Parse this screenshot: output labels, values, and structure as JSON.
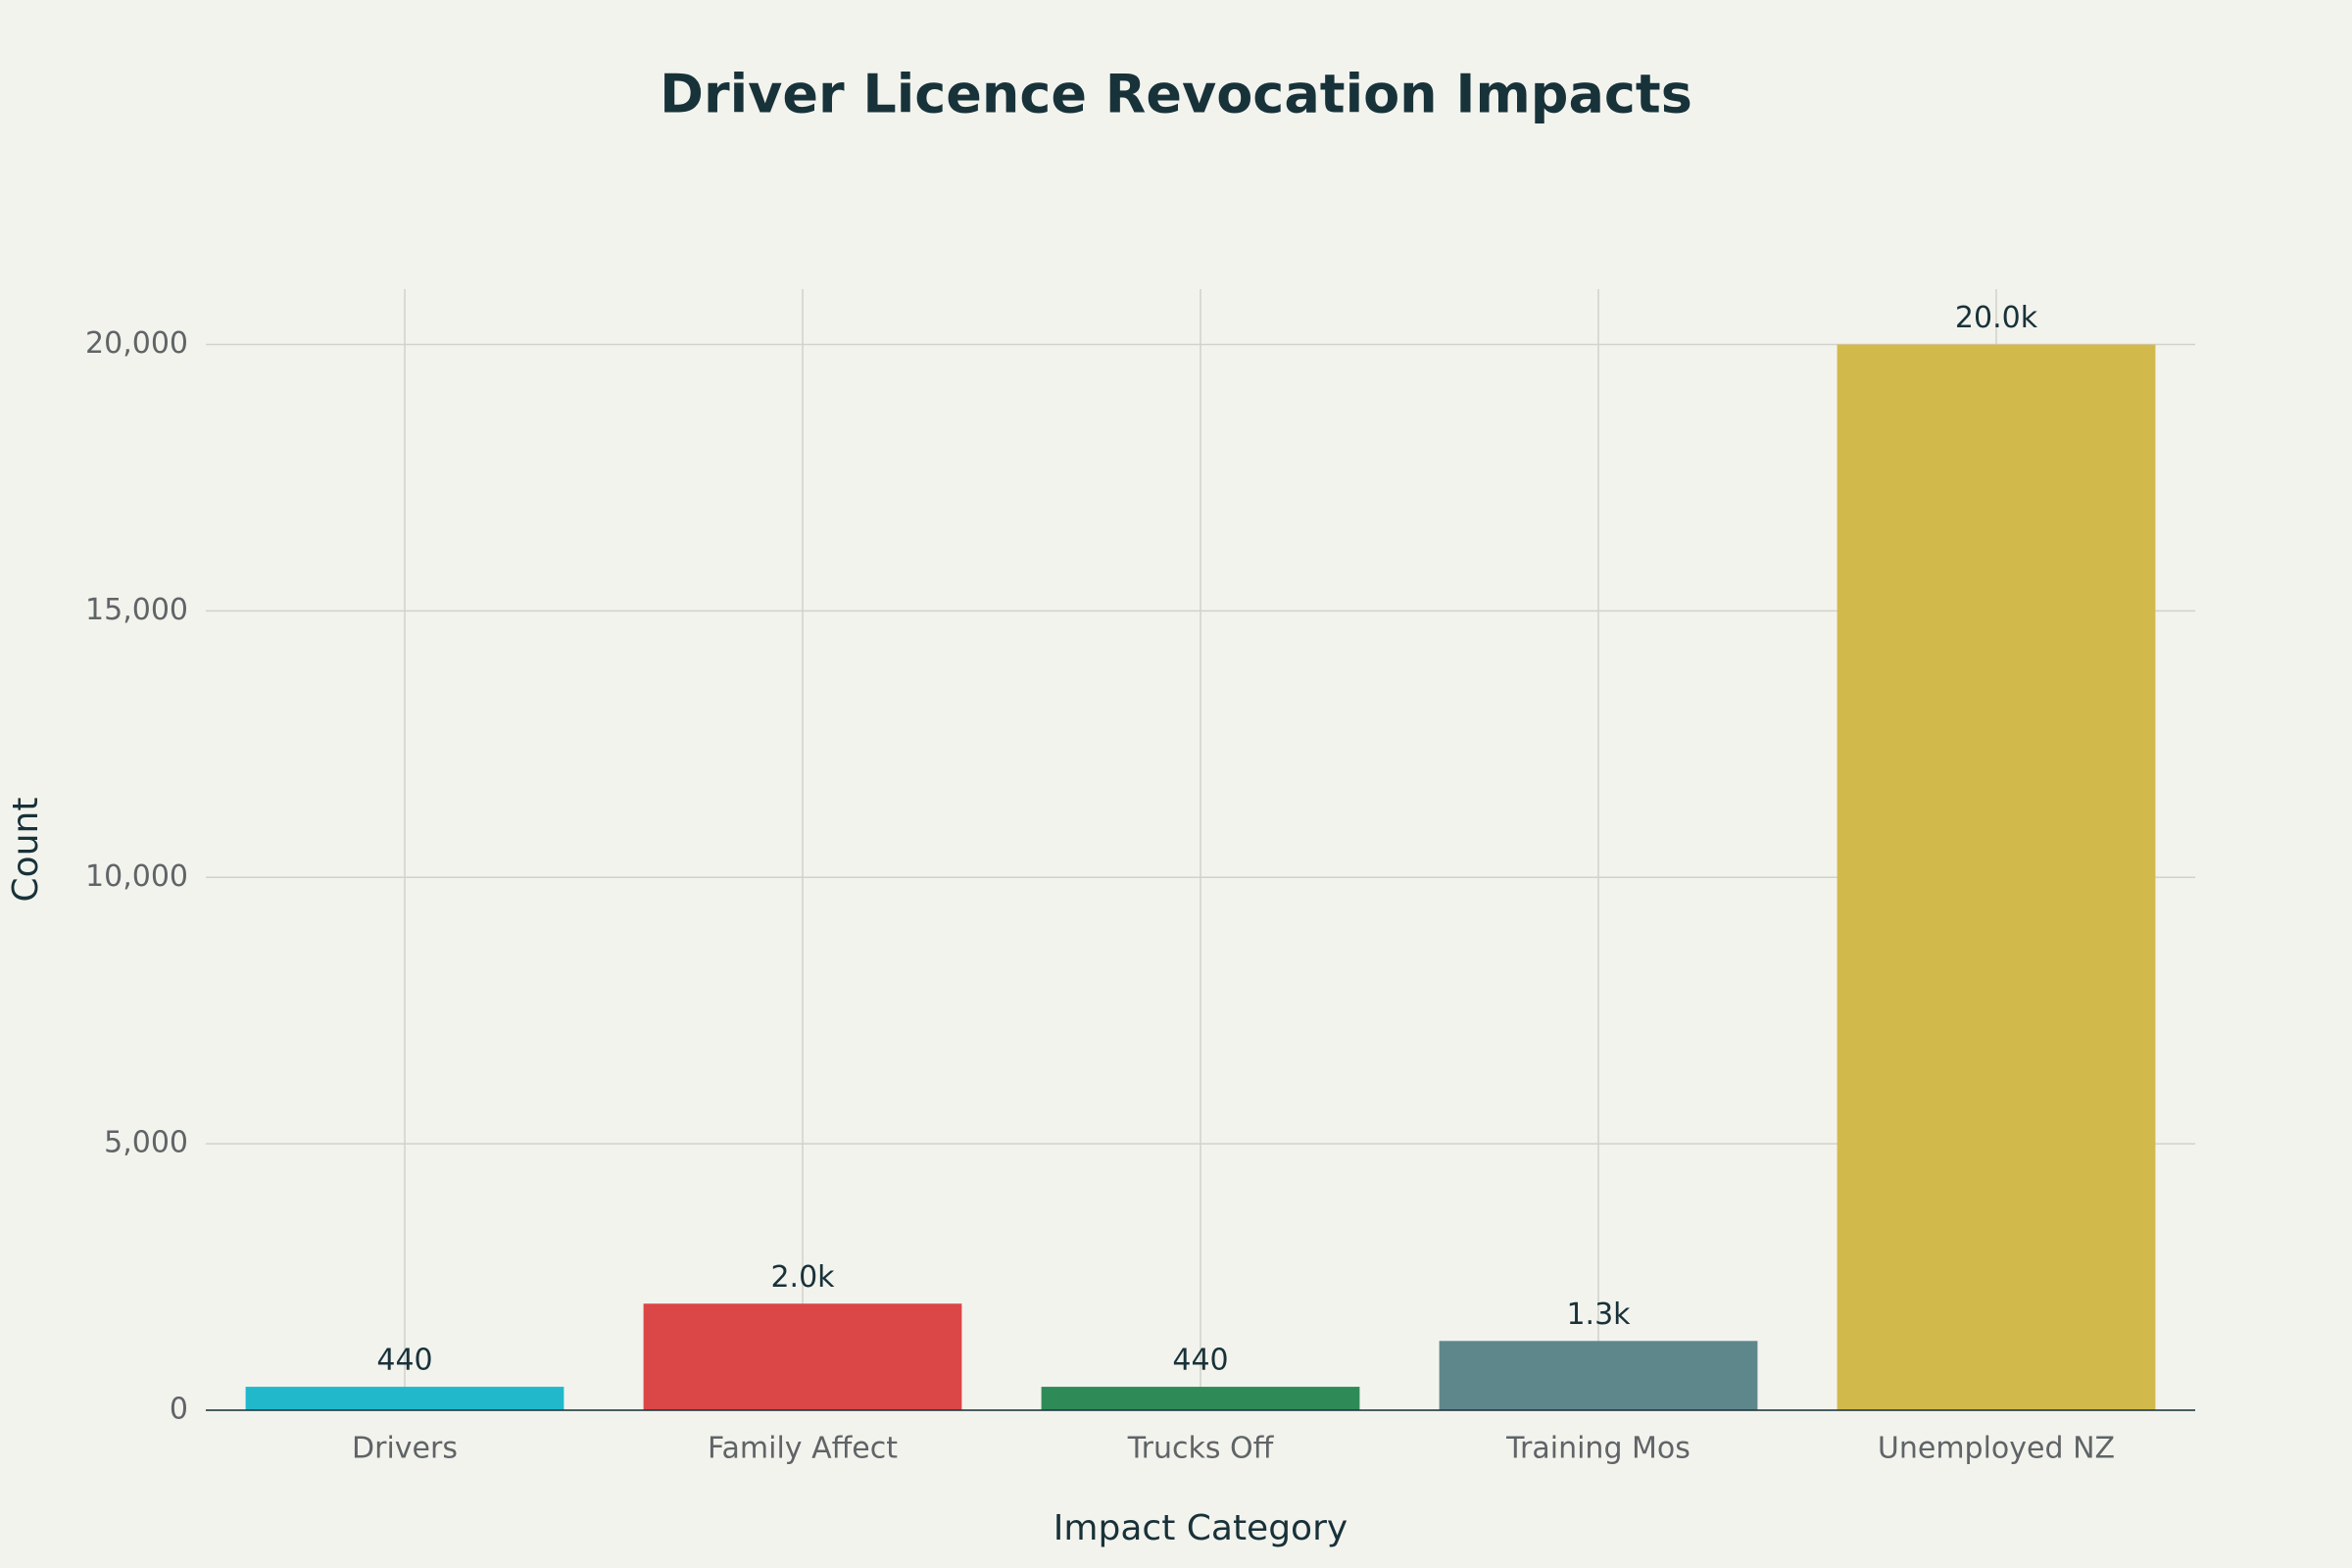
{
  "chart_data": {
    "type": "bar",
    "title": "Driver Licence Revocation Impacts",
    "x_label": "Impact Category",
    "y_label": "Count",
    "categories": [
      "Drivers",
      "Family Affect",
      "Trucks Off",
      "Training Mos",
      "Unemployed NZ"
    ],
    "values": [
      440,
      2000,
      440,
      1300,
      20000
    ],
    "value_labels": [
      "440",
      "2.0k",
      "440",
      "1.3k",
      "20.0k"
    ],
    "colors": [
      "#21b8cc",
      "#db4646",
      "#2e8b57",
      "#5e878c",
      "#d2b94b"
    ],
    "ylim": [
      0,
      21040
    ],
    "yticks": [
      0,
      {
        "value": 5000,
        "label": "5,000"
      },
      {
        "value": 10000,
        "label": "10,000"
      },
      {
        "value": 15000,
        "label": "15,000"
      },
      {
        "value": 20000,
        "label": "20,000"
      }
    ],
    "grid": true
  }
}
